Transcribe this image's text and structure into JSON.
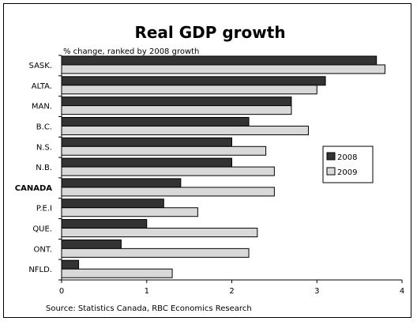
{
  "chart_data": {
    "type": "bar",
    "orientation": "horizontal",
    "title": "Real GDP growth",
    "subtitle": "% change, ranked by 2008 growth",
    "source": "Source: Statistics Canada, RBC Economics Research",
    "categories": [
      "SASK.",
      "ALTA.",
      "MAN.",
      "B.C.",
      "N.S.",
      "N.B.",
      "CANADA",
      "P.E.I",
      "QUE.",
      "ONT.",
      "NFLD."
    ],
    "series": [
      {
        "name": "2008",
        "color": "#333333",
        "values": [
          3.7,
          3.1,
          2.7,
          2.2,
          2.0,
          2.0,
          1.4,
          1.2,
          1.0,
          0.7,
          0.2
        ]
      },
      {
        "name": "2009",
        "color": "#d9d9d9",
        "values": [
          3.8,
          3.0,
          2.7,
          2.9,
          2.4,
          2.5,
          2.5,
          1.6,
          2.3,
          2.2,
          1.3
        ]
      }
    ],
    "xlim": [
      0,
      4
    ],
    "xticks": [
      "0",
      "1",
      "2",
      "3",
      "4"
    ],
    "legend_position": "right",
    "grid": false
  }
}
